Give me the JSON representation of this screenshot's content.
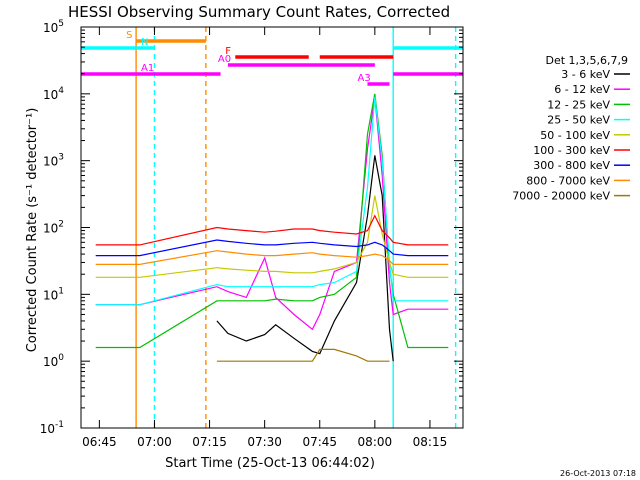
{
  "title": "HESSI Observing Summary Count Rates, Corrected",
  "footer_date": "26-Oct-2013 07:18",
  "chart_data": {
    "type": "line",
    "title": "HESSI Observing Summary Count Rates, Corrected",
    "xlabel": "Start Time (25-Oct-13 06:44:02)",
    "ylabel": "Corrected Count Rate (s⁻¹ detector⁻¹)",
    "y_scale": "log",
    "ylim": [
      0.1,
      100000
    ],
    "xlim": [
      "06:40",
      "08:24"
    ],
    "x_ticks": [
      "06:45",
      "07:00",
      "07:15",
      "07:30",
      "07:45",
      "08:00",
      "08:15"
    ],
    "y_ticks": [
      {
        "value": 0.1,
        "base": "10",
        "exp": "-1"
      },
      {
        "value": 1,
        "base": "10",
        "exp": "0"
      },
      {
        "value": 10,
        "base": "10",
        "exp": "1"
      },
      {
        "value": 100,
        "base": "10",
        "exp": "2"
      },
      {
        "value": 1000,
        "base": "10",
        "exp": "3"
      },
      {
        "value": 10000,
        "base": "10",
        "exp": "4"
      },
      {
        "value": 100000,
        "base": "10",
        "exp": "5"
      }
    ],
    "legend_header": "Det 1,3,5,6,7,9",
    "legend_position": "right",
    "series": [
      {
        "name": "3 - 6 keV",
        "color": "#000000",
        "x": [
          "06:44",
          "06:56",
          "07:17",
          "07:20",
          "07:25",
          "07:30",
          "07:33",
          "07:38",
          "07:43",
          "07:45",
          "07:49",
          "07:55",
          "07:58",
          "08:00",
          "08:02",
          "08:04",
          "08:05",
          "08:09",
          "08:16",
          "08:20"
        ],
        "y": [
          null,
          null,
          4,
          2.6,
          2,
          2.5,
          3.5,
          2.2,
          1.4,
          1.3,
          4,
          15,
          150,
          1200,
          300,
          3,
          1,
          null,
          null,
          null
        ]
      },
      {
        "name": "6 - 12 keV",
        "color": "#ff00ff",
        "x": [
          "06:44",
          "06:56",
          "07:17",
          "07:20",
          "07:25",
          "07:30",
          "07:33",
          "07:38",
          "07:43",
          "07:45",
          "07:49",
          "07:55",
          "07:58",
          "08:00",
          "08:02",
          "08:04",
          "08:05",
          "08:09",
          "08:16",
          "08:20"
        ],
        "y": [
          7,
          7,
          13,
          11,
          9,
          35,
          9,
          5,
          3,
          5,
          22,
          30,
          1500,
          9000,
          600,
          15,
          5,
          6,
          6,
          6
        ]
      },
      {
        "name": "12 - 25 keV",
        "color": "#00c000",
        "x": [
          "06:44",
          "06:56",
          "07:17",
          "07:20",
          "07:25",
          "07:30",
          "07:33",
          "07:38",
          "07:43",
          "07:45",
          "07:49",
          "07:55",
          "07:58",
          "08:00",
          "08:02",
          "08:04",
          "08:05",
          "08:09",
          "08:16",
          "08:20"
        ],
        "y": [
          1.6,
          1.6,
          8,
          8,
          8,
          8,
          8.5,
          8,
          8,
          9,
          10,
          18,
          2500,
          10000,
          1200,
          25,
          10,
          1.6,
          1.6,
          1.6
        ]
      },
      {
        "name": "25 - 50 keV",
        "color": "#00ffff",
        "x": [
          "06:44",
          "06:56",
          "07:17",
          "07:20",
          "07:25",
          "07:30",
          "07:33",
          "07:38",
          "07:43",
          "07:45",
          "07:49",
          "07:55",
          "07:58",
          "08:00",
          "08:02",
          "08:04",
          "08:05",
          "08:09",
          "08:16",
          "08:20"
        ],
        "y": [
          7,
          7,
          14,
          13,
          13,
          13,
          13,
          13,
          13,
          14,
          15,
          22,
          400,
          9000,
          1000,
          30,
          8,
          8,
          8,
          8
        ]
      },
      {
        "name": "50 - 100 keV",
        "color": "#c8c800",
        "x": [
          "06:44",
          "06:56",
          "07:17",
          "07:20",
          "07:25",
          "07:30",
          "07:33",
          "07:38",
          "07:43",
          "07:45",
          "07:49",
          "07:55",
          "07:58",
          "08:00",
          "08:02",
          "08:04",
          "08:05",
          "08:09",
          "08:16",
          "08:20"
        ],
        "y": [
          18,
          18,
          25,
          24,
          23,
          22,
          22,
          21,
          21,
          22,
          24,
          30,
          60,
          300,
          80,
          30,
          20,
          18,
          18,
          18
        ]
      },
      {
        "name": "100 - 300 keV",
        "color": "#ff0000",
        "x": [
          "06:44",
          "06:56",
          "07:17",
          "07:20",
          "07:25",
          "07:30",
          "07:33",
          "07:38",
          "07:43",
          "07:45",
          "07:49",
          "07:55",
          "07:58",
          "08:00",
          "08:02",
          "08:04",
          "08:05",
          "08:09",
          "08:16",
          "08:20"
        ],
        "y": [
          55,
          55,
          100,
          95,
          90,
          85,
          88,
          95,
          95,
          90,
          85,
          80,
          90,
          150,
          90,
          70,
          60,
          55,
          55,
          55
        ]
      },
      {
        "name": "300 - 800 keV",
        "color": "#0000ff",
        "x": [
          "06:44",
          "06:56",
          "07:17",
          "07:20",
          "07:25",
          "07:30",
          "07:33",
          "07:38",
          "07:43",
          "07:45",
          "07:49",
          "07:55",
          "07:58",
          "08:00",
          "08:02",
          "08:04",
          "08:05",
          "08:09",
          "08:16",
          "08:20"
        ],
        "y": [
          38,
          38,
          65,
          62,
          58,
          55,
          55,
          58,
          60,
          58,
          55,
          52,
          55,
          60,
          55,
          45,
          40,
          38,
          38,
          38
        ]
      },
      {
        "name": "800 - 7000 keV",
        "color": "#ff8c00",
        "x": [
          "06:44",
          "06:56",
          "07:17",
          "07:20",
          "07:25",
          "07:30",
          "07:33",
          "07:38",
          "07:43",
          "07:45",
          "07:49",
          "07:55",
          "07:58",
          "08:00",
          "08:02",
          "08:04",
          "08:05",
          "08:09",
          "08:16",
          "08:20"
        ],
        "y": [
          28,
          28,
          45,
          43,
          40,
          38,
          38,
          40,
          42,
          40,
          38,
          36,
          38,
          40,
          38,
          32,
          28,
          28,
          28,
          28
        ]
      },
      {
        "name": "7000 - 20000 keV",
        "color": "#a07800",
        "x": [
          "06:44",
          "06:56",
          "07:17",
          "07:20",
          "07:25",
          "07:30",
          "07:33",
          "07:38",
          "07:43",
          "07:45",
          "07:49",
          "07:55",
          "07:58",
          "08:00",
          "08:02",
          "08:04",
          "08:05",
          "08:09",
          "08:16",
          "08:20"
        ],
        "y": [
          null,
          null,
          1,
          1,
          1,
          1,
          1,
          1,
          1,
          1.5,
          1.5,
          1.2,
          1,
          1,
          1,
          1,
          null,
          null,
          null,
          null
        ]
      }
    ],
    "vertical_lines": [
      {
        "x": "06:55",
        "color": "#ff8c00",
        "style": "solid"
      },
      {
        "x": "07:00",
        "color": "#00ffff",
        "style": "dashed"
      },
      {
        "x": "07:14",
        "color": "#ff8c00",
        "style": "dashed"
      },
      {
        "x": "08:05",
        "color": "#00ffff",
        "style": "solid"
      },
      {
        "x": "08:22",
        "color": "#00ffff",
        "style": "dashed"
      }
    ],
    "flag_bars": [
      {
        "label": "S",
        "color": "#ff8c00",
        "segments": [
          [
            "06:55",
            "07:14"
          ]
        ]
      },
      {
        "label": "N",
        "color": "#00ffff",
        "segments": [
          [
            "06:40",
            "07:00"
          ],
          [
            "08:05",
            "08:24"
          ]
        ]
      },
      {
        "label": "F",
        "color": "#ff0000",
        "segments": [
          [
            "07:22",
            "07:42"
          ],
          [
            "07:45",
            "08:05"
          ]
        ]
      },
      {
        "label": "A0",
        "color": "#ff00ff",
        "segments": [
          [
            "07:20",
            "08:00"
          ]
        ]
      },
      {
        "label": "A1",
        "color": "#ff00ff",
        "segments": [
          [
            "06:40",
            "07:18"
          ],
          [
            "08:05",
            "08:24"
          ]
        ]
      },
      {
        "label": "A3",
        "color": "#ff00ff",
        "segments": [
          [
            "07:58",
            "08:04"
          ]
        ]
      }
    ]
  }
}
